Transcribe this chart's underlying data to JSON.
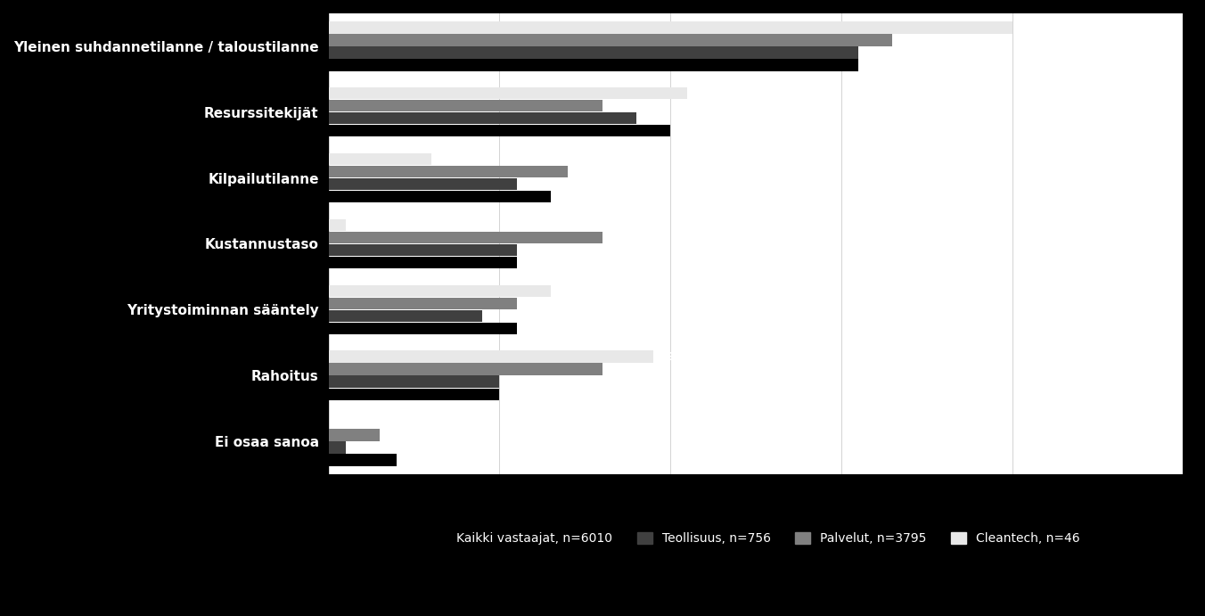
{
  "categories": [
    "Yleinen suhdannetilanne / taloustilanne",
    "Resurssitekijät",
    "Kilpailutilanne",
    "Kustannustaso",
    "Yritystoiminnan sääntely",
    "Rahoitus",
    "Ei osaa sanoa"
  ],
  "series": [
    {
      "name": "Kaikki vastaajat, n=6010",
      "color": "#000000",
      "values": [
        31,
        20,
        13,
        11,
        11,
        10,
        4
      ]
    },
    {
      "name": "Teollisuus, n=756",
      "color": "#404040",
      "values": [
        31,
        18,
        11,
        11,
        9,
        10,
        1
      ]
    },
    {
      "name": "Palvelut, n=3795",
      "color": "#808080",
      "values": [
        33,
        16,
        14,
        16,
        11,
        16,
        3
      ]
    },
    {
      "name": "Cleantech, n=46",
      "color": "#e8e8e8",
      "values": [
        40,
        21,
        6,
        1,
        13,
        19,
        0
      ]
    }
  ],
  "xlim": [
    0,
    50
  ],
  "xticks": [
    0,
    10,
    20,
    30,
    40,
    50
  ],
  "figure_bg": "#000000",
  "plot_bg": "#ffffff",
  "text_color": "#ffffff",
  "label_color_on_bar": "#ffffff",
  "axis_label_color": "#000000",
  "bar_height": 0.18,
  "bar_gap": 0.01,
  "ytick_fontsize": 11,
  "xtick_fontsize": 11,
  "label_fontsize": 9
}
